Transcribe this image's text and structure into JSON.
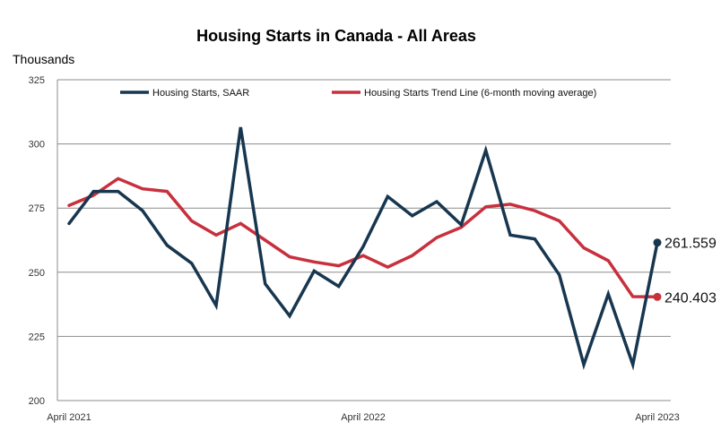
{
  "chart_data": {
    "type": "line",
    "title": "Housing Starts in Canada - All Areas",
    "ylabel": "Thousands",
    "xlabel": "",
    "ylim": [
      200,
      325
    ],
    "y_ticks": [
      "200",
      "225",
      "250",
      "275",
      "300",
      "325"
    ],
    "x_tick_labels": [
      "April 2021",
      "April 2022",
      "April 2023"
    ],
    "grid": true,
    "legend_position": "top",
    "x": [
      "2021-04",
      "2021-05",
      "2021-06",
      "2021-07",
      "2021-08",
      "2021-09",
      "2021-10",
      "2021-11",
      "2021-12",
      "2022-01",
      "2022-02",
      "2022-03",
      "2022-04",
      "2022-05",
      "2022-06",
      "2022-07",
      "2022-08",
      "2022-09",
      "2022-10",
      "2022-11",
      "2022-12",
      "2023-01",
      "2023-02",
      "2023-03",
      "2023-04"
    ],
    "series": [
      {
        "name": "Housing Starts, SAAR",
        "color": "#17364f",
        "values": [
          269,
          281.5,
          281.5,
          274,
          260.5,
          253.5,
          237,
          306.5,
          245.5,
          233,
          250.5,
          244.5,
          260,
          279.5,
          272,
          277.5,
          268.5,
          297.5,
          264.5,
          263,
          249,
          214,
          241.5,
          214,
          261.559
        ]
      },
      {
        "name": "Housing Starts Trend Line (6-month moving average)",
        "color": "#c8303d",
        "values": [
          276,
          280,
          286.5,
          282.5,
          281.5,
          270,
          264.5,
          269,
          262.5,
          256,
          254,
          252.5,
          256.5,
          252,
          256.5,
          263.5,
          267.5,
          275.5,
          276.5,
          274,
          270,
          259.5,
          254.5,
          240.5,
          240.403
        ]
      }
    ],
    "end_labels": [
      "261.559",
      "240.403"
    ]
  }
}
